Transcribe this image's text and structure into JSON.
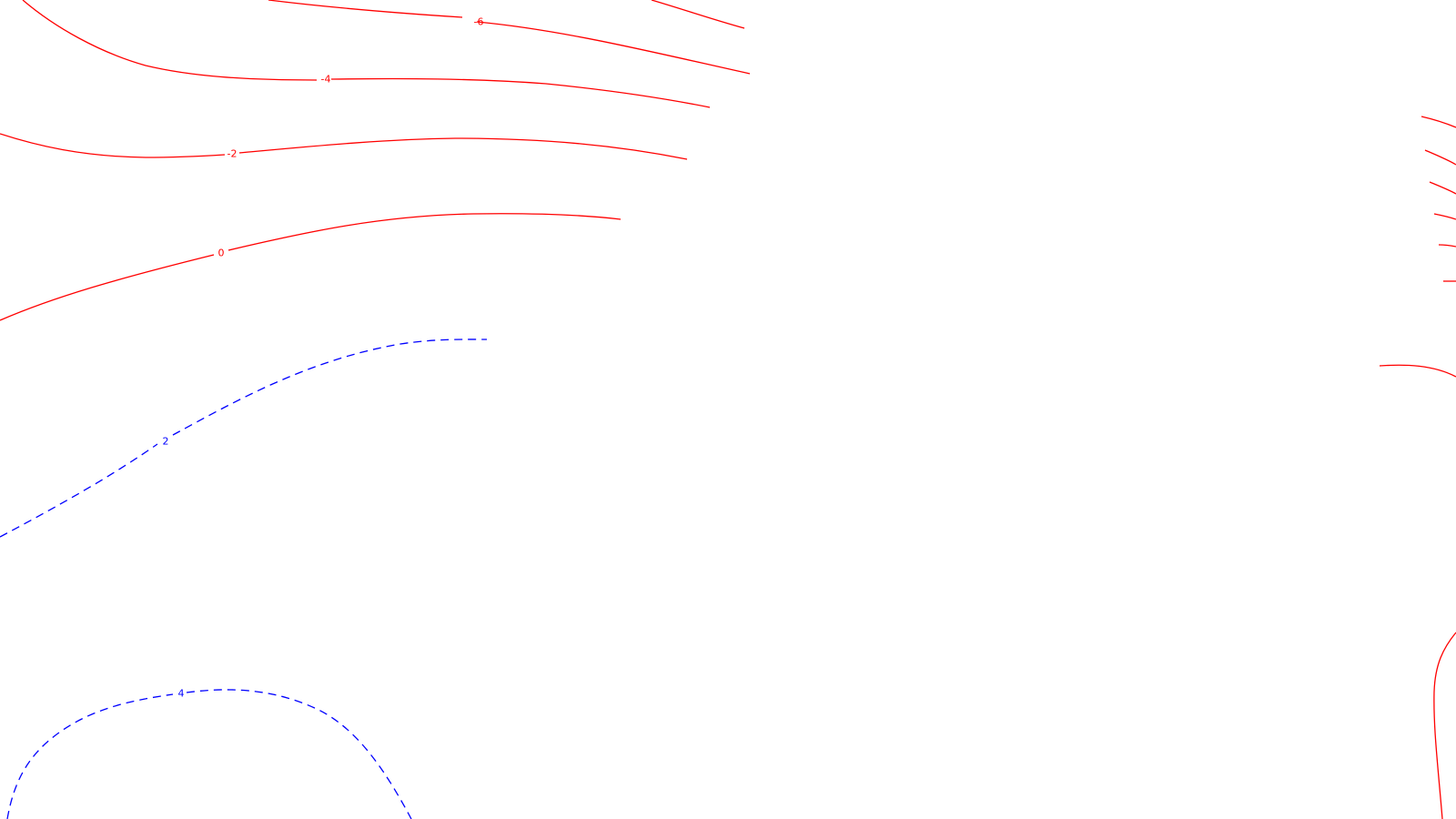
{
  "colors": {
    "background": "#ffffff",
    "positive": "#ff0000",
    "negative": "#0000ff"
  },
  "contour_labels": [
    {
      "id": "c-neg6",
      "text": "-6",
      "sign": "positive"
    },
    {
      "id": "c-neg4",
      "text": "-4",
      "sign": "positive"
    },
    {
      "id": "c-neg2",
      "text": "-2",
      "sign": "positive"
    },
    {
      "id": "c-0",
      "text": "0",
      "sign": "positive"
    },
    {
      "id": "c-2",
      "text": "2",
      "sign": "negative"
    },
    {
      "id": "c-4",
      "text": "4",
      "sign": "negative"
    }
  ]
}
